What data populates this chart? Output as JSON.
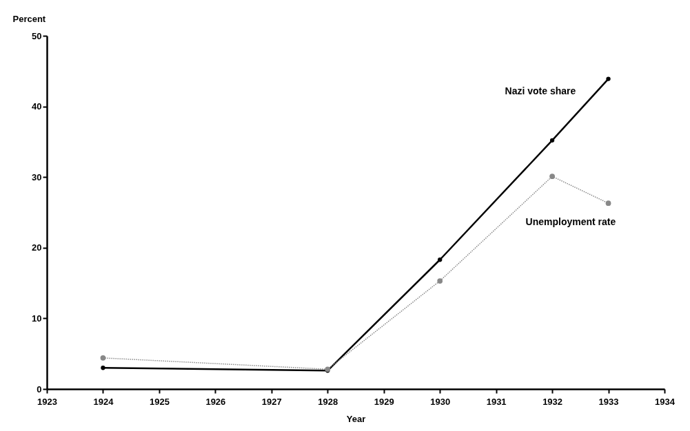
{
  "chart_data": {
    "type": "line",
    "xlabel": "Year",
    "ylabel": "Percent",
    "xlim": [
      1923,
      1934
    ],
    "xticks": [
      1923,
      1924,
      1925,
      1926,
      1927,
      1928,
      1929,
      1930,
      1931,
      1932,
      1933,
      1934
    ],
    "ylim": [
      0,
      50
    ],
    "yticks": [
      0,
      10,
      20,
      30,
      40,
      50
    ],
    "grid": false,
    "marker": "circle",
    "series": [
      {
        "name": "Nazi vote share",
        "color": "#000000",
        "line_style": "solid",
        "x": [
          1924,
          1928,
          1930,
          1932,
          1933
        ],
        "values": [
          3.0,
          2.6,
          18.3,
          35.2,
          43.9
        ]
      },
      {
        "name": "Unemployment rate",
        "color": "#888888",
        "line_style": "dotted",
        "x": [
          1924,
          1928,
          1930,
          1932,
          1933
        ],
        "values": [
          4.4,
          2.8,
          15.3,
          30.1,
          26.3
        ]
      }
    ]
  }
}
